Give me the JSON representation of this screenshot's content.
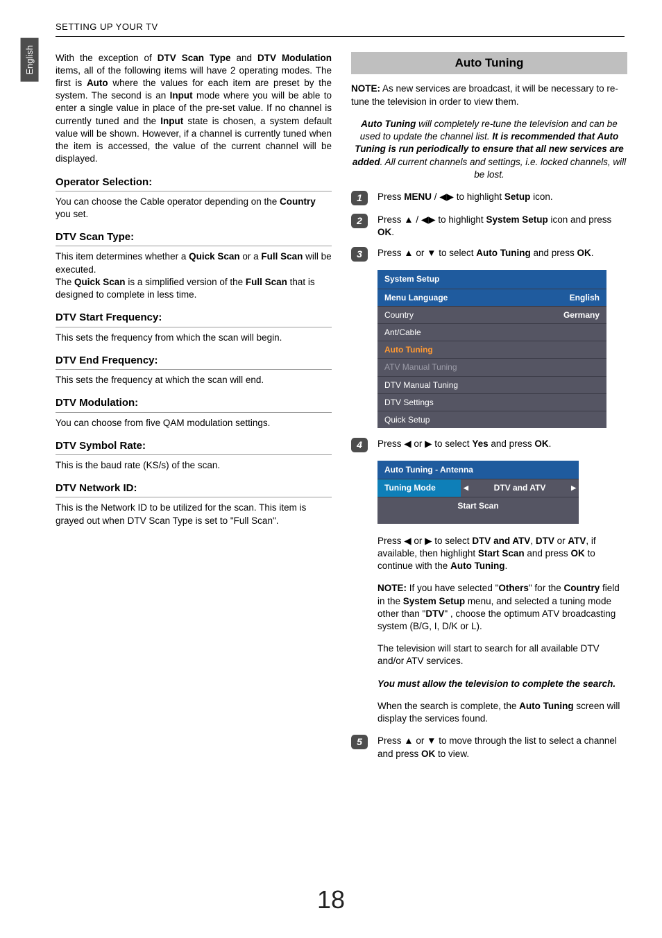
{
  "header": {
    "section_title": "SETTING UP YOUR TV",
    "lang_tab": "English"
  },
  "left": {
    "intro": "With the exception of <b>DTV Scan Type</b> and <b>DTV Modulation</b> items, all of the following items will have 2 operating modes. The first is <b>Auto</b> where the values for each item are preset by the system. The second is an <b>Input</b> mode where you will be able to enter a single value in place of the pre-set value. If no channel is currently tuned and the <b>Input</b> state is chosen, a system default value will be shown. However, if a channel is currently tuned when the item is accessed, the value of the current channel will be displayed.",
    "sections": [
      {
        "head": "Operator Selection:",
        "body": "You can choose the Cable operator depending on the <b>Country</b> you set."
      },
      {
        "head": "DTV Scan Type:",
        "body": "This item determines whether a <b>Quick Scan</b> or a <b>Full Scan</b> will be executed.<br>The <b>Quick Scan</b> is a simplified version of the <b>Full Scan</b> that is designed to complete in less time."
      },
      {
        "head": "DTV Start Frequency:",
        "body": "This sets the frequency from which the scan will begin."
      },
      {
        "head": "DTV End Frequency:",
        "body": "This sets the frequency at which the scan will end."
      },
      {
        "head": "DTV Modulation:",
        "body": "You can choose from five QAM modulation settings."
      },
      {
        "head": "DTV Symbol Rate:",
        "body": "This is the baud rate (KS/s) of the scan."
      },
      {
        "head": "DTV Network ID:",
        "body": "This is the Network ID to be utilized for the scan. This item is grayed out when DTV Scan Type is set to \"Full Scan\"."
      }
    ]
  },
  "right": {
    "banner": "Auto Tuning",
    "note1": "<b>NOTE:</b> As new services are broadcast, it will be necessary to re-tune the television in order to view them.",
    "intro_italic": "<b>Auto Tuning</b> will completely re-tune the television and can be used to update the channel list. <b>It is recommended that Auto Tuning is run periodically to ensure that all new services are added</b>. All current channels and settings, i.e. locked channels, will be lost.",
    "steps": {
      "s1": "Press <b>MENU</b> / ◀▶ to highlight <b>Setup</b> icon.",
      "s2": "Press ▲ / ◀▶ to highlight <b>System Setup</b> icon and press <b>OK</b>.",
      "s3": "Press ▲ or ▼ to select <b>Auto Tuning</b> and press <b>OK</b>.",
      "s4": "Press ◀ or ▶ to select <b>Yes</b> and press <b>OK</b>.",
      "s4b": "Press ◀ or ▶ to select <b>DTV and ATV</b>, <b>DTV</b> or <b>ATV</b>, if available, then highlight <b>Start Scan</b> and press <b>OK</b> to continue with the <b>Auto Tuning</b>.",
      "s4note": "<b>NOTE:</b> If you have selected \"<b>Others</b>\" for the <b>Country</b> field in the <b>System Setup</b> menu, and selected a tuning mode other than \"<b>DTV</b>\" , choose the optimum ATV broadcasting system (B/G, I, D/K or L).",
      "s4c": "The television will start to search for all available DTV and/or ATV services.",
      "s4d": "You must allow the television to complete the search.",
      "s4e": "When the search is complete, the <b>Auto Tuning</b> screen will display the services found.",
      "s5": "Press ▲ or ▼ to move through the list to select a channel and press <b>OK</b> to view."
    },
    "menu1": {
      "title": "System Setup",
      "rows": [
        {
          "label": "Menu Language",
          "value": "English",
          "cls": "header-row"
        },
        {
          "label": "Country",
          "value": "Germany",
          "cls": ""
        },
        {
          "label": "Ant/Cable",
          "value": "",
          "cls": ""
        },
        {
          "label": "Auto Tuning",
          "value": "",
          "cls": "selected"
        },
        {
          "label": "ATV Manual Tuning",
          "value": "",
          "cls": "dim"
        },
        {
          "label": "DTV Manual Tuning",
          "value": "",
          "cls": ""
        },
        {
          "label": "DTV Settings",
          "value": "",
          "cls": ""
        },
        {
          "label": "Quick Setup",
          "value": "",
          "cls": ""
        }
      ]
    },
    "menu2": {
      "title": "Auto Tuning - Antenna",
      "mode_label": "Tuning Mode",
      "mode_value": "DTV and ATV",
      "scan": "Start Scan"
    }
  },
  "page_number": "18",
  "style": {
    "banner_bg": "#bfbfbf",
    "tab_bg": "#4d4d4d",
    "menu_title_bg": "#1f5b9e",
    "menu_row_bg": "#555563",
    "menu_selected_color": "#ff9933",
    "tuning_label_bg": "#0e7fb8"
  }
}
